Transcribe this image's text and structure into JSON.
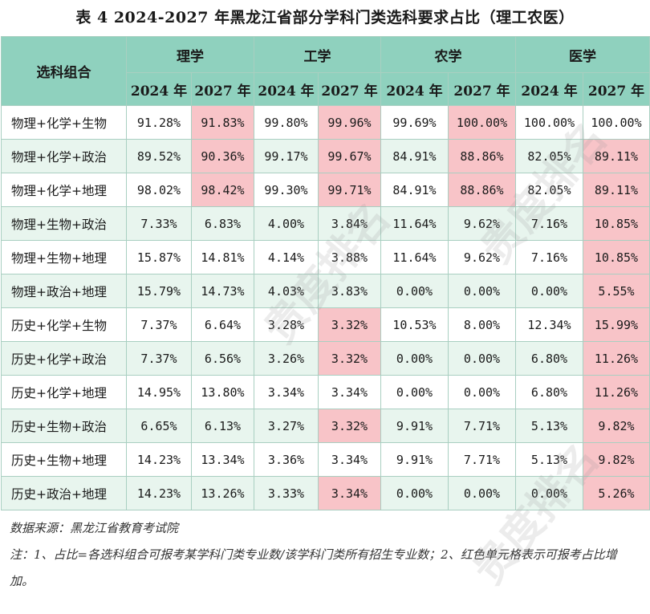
{
  "title": "表 4  2024-2027 年黑龙江省部分学科门类选科要求占比（理工农医）",
  "header": {
    "combo_label": "选科组合",
    "groups": [
      "理学",
      "工学",
      "农学",
      "医学"
    ],
    "years": [
      "2024 年",
      "2027 年"
    ]
  },
  "colors": {
    "header_bg": "#8fd1be",
    "stripe_bg": "#e8f5ee",
    "increase_bg": "#f8c4c8"
  },
  "rows": [
    {
      "combo": "物理+化学+生物",
      "cells": [
        {
          "v": "91.28%",
          "inc": false
        },
        {
          "v": "91.83%",
          "inc": true
        },
        {
          "v": "99.80%",
          "inc": false
        },
        {
          "v": "99.96%",
          "inc": true
        },
        {
          "v": "99.69%",
          "inc": false
        },
        {
          "v": "100.00%",
          "inc": true
        },
        {
          "v": "100.00%",
          "inc": false
        },
        {
          "v": "100.00%",
          "inc": false
        }
      ]
    },
    {
      "combo": "物理+化学+政治",
      "cells": [
        {
          "v": "89.52%",
          "inc": false
        },
        {
          "v": "90.36%",
          "inc": true
        },
        {
          "v": "99.17%",
          "inc": false
        },
        {
          "v": "99.67%",
          "inc": true
        },
        {
          "v": "84.91%",
          "inc": false
        },
        {
          "v": "88.86%",
          "inc": true
        },
        {
          "v": "82.05%",
          "inc": false
        },
        {
          "v": "89.11%",
          "inc": true
        }
      ]
    },
    {
      "combo": "物理+化学+地理",
      "cells": [
        {
          "v": "98.02%",
          "inc": false
        },
        {
          "v": "98.42%",
          "inc": true
        },
        {
          "v": "99.30%",
          "inc": false
        },
        {
          "v": "99.71%",
          "inc": true
        },
        {
          "v": "84.91%",
          "inc": false
        },
        {
          "v": "88.86%",
          "inc": true
        },
        {
          "v": "82.05%",
          "inc": false
        },
        {
          "v": "89.11%",
          "inc": true
        }
      ]
    },
    {
      "combo": "物理+生物+政治",
      "cells": [
        {
          "v": "7.33%",
          "inc": false
        },
        {
          "v": "6.83%",
          "inc": false
        },
        {
          "v": "4.00%",
          "inc": false
        },
        {
          "v": "3.84%",
          "inc": false
        },
        {
          "v": "11.64%",
          "inc": false
        },
        {
          "v": "9.62%",
          "inc": false
        },
        {
          "v": "7.16%",
          "inc": false
        },
        {
          "v": "10.85%",
          "inc": true
        }
      ]
    },
    {
      "combo": "物理+生物+地理",
      "cells": [
        {
          "v": "15.87%",
          "inc": false
        },
        {
          "v": "14.81%",
          "inc": false
        },
        {
          "v": "4.14%",
          "inc": false
        },
        {
          "v": "3.88%",
          "inc": false
        },
        {
          "v": "11.64%",
          "inc": false
        },
        {
          "v": "9.62%",
          "inc": false
        },
        {
          "v": "7.16%",
          "inc": false
        },
        {
          "v": "10.85%",
          "inc": true
        }
      ]
    },
    {
      "combo": "物理+政治+地理",
      "cells": [
        {
          "v": "15.79%",
          "inc": false
        },
        {
          "v": "14.73%",
          "inc": false
        },
        {
          "v": "4.03%",
          "inc": false
        },
        {
          "v": "3.83%",
          "inc": false
        },
        {
          "v": "0.00%",
          "inc": false
        },
        {
          "v": "0.00%",
          "inc": false
        },
        {
          "v": "0.00%",
          "inc": false
        },
        {
          "v": "5.55%",
          "inc": true
        }
      ]
    },
    {
      "combo": "历史+化学+生物",
      "cells": [
        {
          "v": "7.37%",
          "inc": false
        },
        {
          "v": "6.64%",
          "inc": false
        },
        {
          "v": "3.28%",
          "inc": false
        },
        {
          "v": "3.32%",
          "inc": true
        },
        {
          "v": "10.53%",
          "inc": false
        },
        {
          "v": "8.00%",
          "inc": false
        },
        {
          "v": "12.34%",
          "inc": false
        },
        {
          "v": "15.99%",
          "inc": true
        }
      ]
    },
    {
      "combo": "历史+化学+政治",
      "cells": [
        {
          "v": "7.37%",
          "inc": false
        },
        {
          "v": "6.56%",
          "inc": false
        },
        {
          "v": "3.26%",
          "inc": false
        },
        {
          "v": "3.32%",
          "inc": true
        },
        {
          "v": "0.00%",
          "inc": false
        },
        {
          "v": "0.00%",
          "inc": false
        },
        {
          "v": "6.80%",
          "inc": false
        },
        {
          "v": "11.26%",
          "inc": true
        }
      ]
    },
    {
      "combo": "历史+化学+地理",
      "cells": [
        {
          "v": "14.95%",
          "inc": false
        },
        {
          "v": "13.80%",
          "inc": false
        },
        {
          "v": "3.34%",
          "inc": false
        },
        {
          "v": "3.34%",
          "inc": false
        },
        {
          "v": "0.00%",
          "inc": false
        },
        {
          "v": "0.00%",
          "inc": false
        },
        {
          "v": "6.80%",
          "inc": false
        },
        {
          "v": "11.26%",
          "inc": true
        }
      ]
    },
    {
      "combo": "历史+生物+政治",
      "cells": [
        {
          "v": "6.65%",
          "inc": false
        },
        {
          "v": "6.13%",
          "inc": false
        },
        {
          "v": "3.27%",
          "inc": false
        },
        {
          "v": "3.32%",
          "inc": true
        },
        {
          "v": "9.91%",
          "inc": false
        },
        {
          "v": "7.71%",
          "inc": false
        },
        {
          "v": "5.13%",
          "inc": false
        },
        {
          "v": "9.82%",
          "inc": true
        }
      ]
    },
    {
      "combo": "历史+生物+地理",
      "cells": [
        {
          "v": "14.23%",
          "inc": false
        },
        {
          "v": "13.34%",
          "inc": false
        },
        {
          "v": "3.36%",
          "inc": false
        },
        {
          "v": "3.34%",
          "inc": false
        },
        {
          "v": "9.91%",
          "inc": false
        },
        {
          "v": "7.71%",
          "inc": false
        },
        {
          "v": "5.13%",
          "inc": false
        },
        {
          "v": "9.82%",
          "inc": true
        }
      ]
    },
    {
      "combo": "历史+政治+地理",
      "cells": [
        {
          "v": "14.23%",
          "inc": false
        },
        {
          "v": "13.26%",
          "inc": false
        },
        {
          "v": "3.33%",
          "inc": false
        },
        {
          "v": "3.34%",
          "inc": true
        },
        {
          "v": "0.00%",
          "inc": false
        },
        {
          "v": "0.00%",
          "inc": false
        },
        {
          "v": "0.00%",
          "inc": false
        },
        {
          "v": "5.26%",
          "inc": true
        }
      ]
    }
  ],
  "source": "数据来源：黑龙江省教育考试院",
  "note": "注：1、占比=各选科组合可报考某学科门类专业数/该学科门类所有招生专业数；2、红色单元格表示可报考占比增加。",
  "watermark": "贵度排名"
}
